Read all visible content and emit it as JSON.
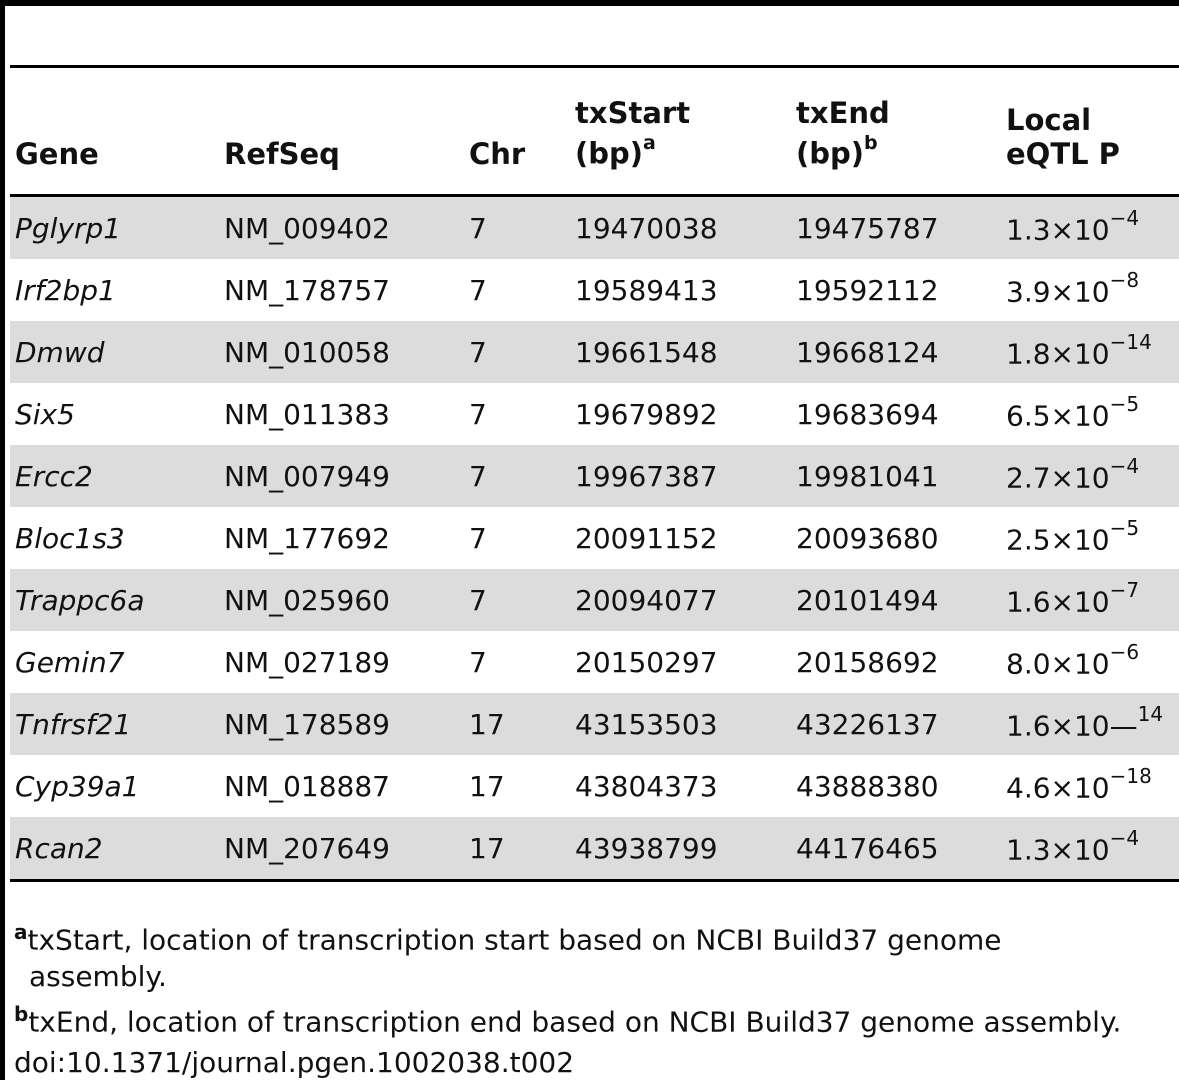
{
  "headers": {
    "gene": "Gene",
    "refseq": "RefSeq",
    "chr": "Chr",
    "txstart_line1": "txStart",
    "txstart_line2": "(bp)",
    "txstart_mark": "a",
    "txend_line1": "txEnd",
    "txend_line2": "(bp)",
    "txend_mark": "b",
    "pval_line1": "Local",
    "pval_line2": "eQTL P"
  },
  "rows": [
    {
      "gene": "Pglyrp1",
      "refseq": "NM_009402",
      "chr": "7",
      "txstart": "19470038",
      "txend": "19475787",
      "p_base": "1.3×10",
      "p_exp": "−4"
    },
    {
      "gene": "Irf2bp1",
      "refseq": "NM_178757",
      "chr": "7",
      "txstart": "19589413",
      "txend": "19592112",
      "p_base": "3.9×10",
      "p_exp": "−8"
    },
    {
      "gene": "Dmwd",
      "refseq": "NM_010058",
      "chr": "7",
      "txstart": "19661548",
      "txend": "19668124",
      "p_base": "1.8×10",
      "p_exp": "−14"
    },
    {
      "gene": "Six5",
      "refseq": "NM_011383",
      "chr": "7",
      "txstart": "19679892",
      "txend": "19683694",
      "p_base": "6.5×10",
      "p_exp": "−5"
    },
    {
      "gene": "Ercc2",
      "refseq": "NM_007949",
      "chr": "7",
      "txstart": "19967387",
      "txend": "19981041",
      "p_base": "2.7×10",
      "p_exp": "−4"
    },
    {
      "gene": "Bloc1s3",
      "refseq": "NM_177692",
      "chr": "7",
      "txstart": "20091152",
      "txend": "20093680",
      "p_base": "2.5×10",
      "p_exp": "−5"
    },
    {
      "gene": "Trappc6a",
      "refseq": "NM_025960",
      "chr": "7",
      "txstart": "20094077",
      "txend": "20101494",
      "p_base": "1.6×10",
      "p_exp": "−7"
    },
    {
      "gene": "Gemin7",
      "refseq": "NM_027189",
      "chr": "7",
      "txstart": "20150297",
      "txend": "20158692",
      "p_base": "8.0×10",
      "p_exp": "−6"
    },
    {
      "gene": "Tnfrsf21",
      "refseq": "NM_178589",
      "chr": "17",
      "txstart": "43153503",
      "txend": "43226137",
      "p_base": "1.6×10—",
      "p_exp": "14"
    },
    {
      "gene": "Cyp39a1",
      "refseq": "NM_018887",
      "chr": "17",
      "txstart": "43804373",
      "txend": "43888380",
      "p_base": "4.6×10",
      "p_exp": "−18"
    },
    {
      "gene": "Rcan2",
      "refseq": "NM_207649",
      "chr": "17",
      "txstart": "43938799",
      "txend": "44176465",
      "p_base": "1.3×10",
      "p_exp": "−4"
    }
  ],
  "footnotes": {
    "a_mark": "a",
    "a_text_1": "txStart, location of transcription start based on NCBI Build37 genome",
    "a_text_2": "assembly.",
    "b_mark": "b",
    "b_text": "txEnd, location of transcription end based on NCBI Build37 genome assembly.",
    "doi": "doi:10.1371/journal.pgen.1002038.t002"
  }
}
